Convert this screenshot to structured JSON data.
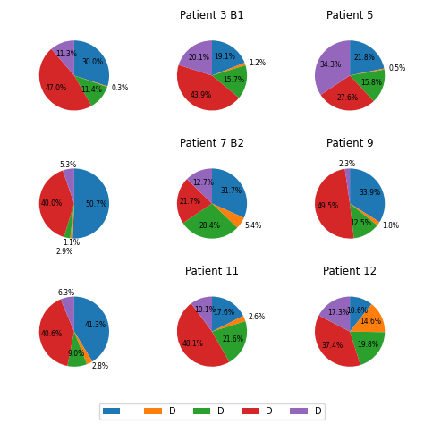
{
  "chart_data": [
    {
      "type": "pie",
      "categories": [
        null,
        "D",
        "D",
        "D",
        "D"
      ],
      "values": [
        30.0,
        0.3,
        11.4,
        47.0,
        11.3
      ],
      "value_labels": [
        "30.0%",
        "0.3%",
        "11.4%",
        "47.0%",
        "11.3%"
      ],
      "data_labels": true,
      "legend": "lower center"
    },
    {
      "type": "pie",
      "title": "Patient 3 B1",
      "categories": [
        null,
        "D",
        "D",
        "D",
        "D"
      ],
      "values": [
        19.1,
        1.2,
        15.7,
        43.9,
        20.1
      ],
      "value_labels": [
        "19.1%",
        "1.2%",
        "15.7%",
        "43.9%",
        "20.1%"
      ],
      "data_labels": true
    },
    {
      "type": "pie",
      "title": "Patient 5",
      "categories": [
        null,
        "D",
        "D",
        "D",
        "D"
      ],
      "values": [
        21.8,
        0.5,
        15.8,
        27.6,
        34.3
      ],
      "value_labels": [
        "21.8%",
        "0.5%",
        "15.8%",
        "27.6%",
        "34.3%"
      ],
      "data_labels": true
    },
    {
      "type": "pie",
      "categories": [
        null,
        "D",
        "D",
        "D",
        "D"
      ],
      "values": [
        50.7,
        1.1,
        2.9,
        40.0,
        5.3
      ],
      "value_labels": [
        "50.7%",
        "1.1%",
        "2.9%",
        "40.0%",
        "5.3%"
      ],
      "data_labels": true
    },
    {
      "type": "pie",
      "title": "Patient 7 B2",
      "categories": [
        null,
        "D",
        "D",
        "D",
        "D"
      ],
      "values": [
        31.7,
        5.4,
        28.4,
        21.7,
        12.7
      ],
      "value_labels": [
        "31.7%",
        "5.4%",
        "28.4%",
        "21.7%",
        "12.7%"
      ],
      "data_labels": true
    },
    {
      "type": "pie",
      "title": "Patient 9",
      "categories": [
        null,
        "D",
        "D",
        "D",
        "D"
      ],
      "values": [
        33.9,
        1.8,
        12.5,
        49.5,
        2.3
      ],
      "value_labels": [
        "33.9%",
        "1.8%",
        "12.5%",
        "49.5%",
        "2.3%"
      ],
      "data_labels": true
    },
    {
      "type": "pie",
      "categories": [
        null,
        "D",
        "D",
        "D",
        "D"
      ],
      "values": [
        41.3,
        2.8,
        9.0,
        40.6,
        6.3
      ],
      "value_labels": [
        "41.3%",
        "2.8%",
        "9.0%",
        "40.6%",
        "6.3%"
      ],
      "data_labels": true
    },
    {
      "type": "pie",
      "title": "Patient 11",
      "categories": [
        null,
        "D",
        "D",
        "D",
        "D"
      ],
      "values": [
        17.6,
        2.6,
        21.6,
        48.1,
        10.1
      ],
      "value_labels": [
        "17.6%",
        "2.6%",
        "21.6%",
        "48.1%",
        "10.1%"
      ],
      "data_labels": true
    },
    {
      "type": "pie",
      "title": "Patient 12",
      "categories": [
        null,
        "D",
        "D",
        "D",
        "D"
      ],
      "values": [
        10.6,
        14.6,
        19.8,
        37.4,
        17.3
      ],
      "value_labels": [
        "10.6%",
        "14.6%",
        "19.8%",
        "37.4%",
        "17.3%"
      ],
      "data_labels": true
    }
  ]
}
